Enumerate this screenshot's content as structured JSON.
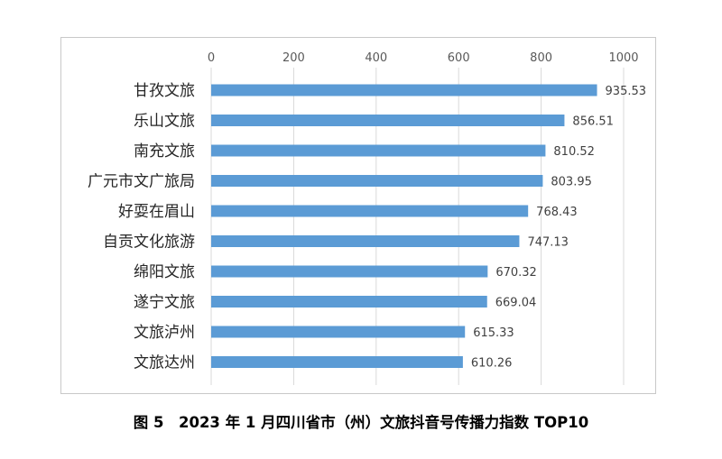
{
  "chart_data": {
    "type": "bar",
    "orientation": "horizontal",
    "title": "",
    "xlabel": "",
    "ylabel": "",
    "xlim": [
      0,
      1000
    ],
    "ticks": [
      0,
      200,
      400,
      600,
      800,
      1000
    ],
    "tick_labels": [
      "0",
      "200",
      "400",
      "600",
      "800",
      "1000"
    ],
    "grid": true,
    "legend": "none",
    "bar_color": "#5b9bd5",
    "categories": [
      "甘孜文旅",
      "乐山文旅",
      "南充文旅",
      "广元市文广旅局",
      "好耍在眉山",
      "自贡文化旅游",
      "绵阳文旅",
      "遂宁文旅",
      "文旅泸州",
      "文旅达州"
    ],
    "values": [
      935.53,
      856.51,
      810.52,
      803.95,
      768.43,
      747.13,
      670.32,
      669.04,
      615.33,
      610.26
    ],
    "value_labels": [
      "935.53",
      "856.51",
      "810.52",
      "803.95",
      "768.43",
      "747.13",
      "670.32",
      "669.04",
      "615.33",
      "610.26"
    ]
  },
  "caption": "图 5　2023 年 1 月四川省市（州）文旅抖音号传播力指数 TOP10"
}
